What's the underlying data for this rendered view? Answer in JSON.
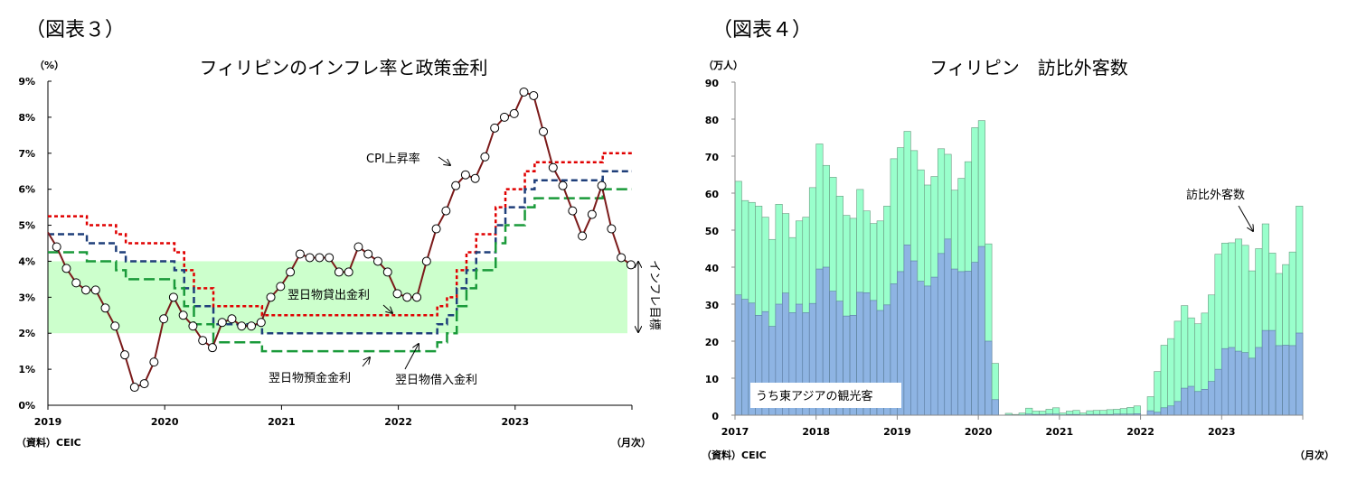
{
  "chart_data": [
    {
      "type": "line",
      "figure_label": "（図表３）",
      "title": "フィリピンのインフレ率と政策金利",
      "ylabel": "（%）",
      "xlabel": "（月次）",
      "source": "（資料）CEIC",
      "ylim": [
        0,
        9
      ],
      "yticks": [
        "0%",
        "1%",
        "2%",
        "3%",
        "4%",
        "5%",
        "6%",
        "7%",
        "8%",
        "9%"
      ],
      "xticks": [
        "2019",
        "2020",
        "2021",
        "2022",
        "2023"
      ],
      "x_start": "2019-01",
      "x_end": "2023-12",
      "target_band": {
        "label": "インフレ目標",
        "range": [
          2,
          4
        ],
        "color": "#ccffcc"
      },
      "series": [
        {
          "name": "CPI上昇率",
          "color": "#7b1a1a",
          "marker": "open-circle",
          "values": [
            4.4,
            3.8,
            3.4,
            3.2,
            3.2,
            2.7,
            2.2,
            1.4,
            0.5,
            0.6,
            1.2,
            2.4,
            3.0,
            2.5,
            2.2,
            1.8,
            1.6,
            2.3,
            2.4,
            2.2,
            2.2,
            2.3,
            3.0,
            3.3,
            3.7,
            4.2,
            4.1,
            4.1,
            4.1,
            3.7,
            3.7,
            4.4,
            4.2,
            4.0,
            3.7,
            3.1,
            3.0,
            3.0,
            4.0,
            4.9,
            5.4,
            6.1,
            6.4,
            6.3,
            6.9,
            7.7,
            8.0,
            8.1,
            8.7,
            8.6,
            7.6,
            6.6,
            6.1,
            5.4,
            4.7,
            5.3,
            6.1,
            4.9,
            4.1,
            3.9
          ]
        },
        {
          "name": "翌日物貸出金利",
          "color": "#e00000",
          "dash": "short",
          "values": [
            5.25,
            5.25,
            5.25,
            5.25,
            5.0,
            5.0,
            5.0,
            4.75,
            4.5,
            4.5,
            4.5,
            4.5,
            4.5,
            4.25,
            3.75,
            3.25,
            3.25,
            2.75,
            2.75,
            2.75,
            2.75,
            2.75,
            2.5,
            2.5,
            2.5,
            2.5,
            2.5,
            2.5,
            2.5,
            2.5,
            2.5,
            2.5,
            2.5,
            2.5,
            2.5,
            2.5,
            2.5,
            2.5,
            2.5,
            2.5,
            2.75,
            3.0,
            3.75,
            4.25,
            4.75,
            4.75,
            5.5,
            6.0,
            6.0,
            6.5,
            6.75,
            6.75,
            6.75,
            6.75,
            6.75,
            6.75,
            6.75,
            7.0,
            7.0,
            7.0
          ]
        },
        {
          "name": "翌日物借入金利",
          "color": "#1f3f7a",
          "dash": "medium",
          "values": [
            4.75,
            4.75,
            4.75,
            4.75,
            4.5,
            4.5,
            4.5,
            4.25,
            4.0,
            4.0,
            4.0,
            4.0,
            4.0,
            3.75,
            3.25,
            2.75,
            2.75,
            2.25,
            2.25,
            2.25,
            2.25,
            2.25,
            2.0,
            2.0,
            2.0,
            2.0,
            2.0,
            2.0,
            2.0,
            2.0,
            2.0,
            2.0,
            2.0,
            2.0,
            2.0,
            2.0,
            2.0,
            2.0,
            2.0,
            2.0,
            2.25,
            2.5,
            3.25,
            3.75,
            4.25,
            4.25,
            5.0,
            5.5,
            5.5,
            6.0,
            6.25,
            6.25,
            6.25,
            6.25,
            6.25,
            6.25,
            6.25,
            6.5,
            6.5,
            6.5
          ]
        },
        {
          "name": "翌日物預金金利",
          "color": "#1a9a3a",
          "dash": "long",
          "values": [
            4.25,
            4.25,
            4.25,
            4.25,
            4.0,
            4.0,
            4.0,
            3.75,
            3.5,
            3.5,
            3.5,
            3.5,
            3.5,
            3.25,
            2.75,
            2.25,
            2.25,
            1.75,
            1.75,
            1.75,
            1.75,
            1.75,
            1.5,
            1.5,
            1.5,
            1.5,
            1.5,
            1.5,
            1.5,
            1.5,
            1.5,
            1.5,
            1.5,
            1.5,
            1.5,
            1.5,
            1.5,
            1.5,
            1.5,
            1.5,
            1.75,
            2.0,
            2.75,
            3.25,
            3.75,
            3.75,
            4.5,
            5.0,
            5.0,
            5.5,
            5.75,
            5.75,
            5.75,
            5.75,
            5.75,
            5.75,
            5.75,
            6.0,
            6.0,
            6.0
          ]
        }
      ]
    },
    {
      "type": "bar",
      "stacked": true,
      "figure_label": "（図表４）",
      "title": "フィリピン　訪比外客数",
      "ylabel": "（万人）",
      "xlabel": "（月次）",
      "source": "（資料）CEIC",
      "ylim": [
        0,
        90
      ],
      "yticks": [
        "0",
        "10",
        "20",
        "30",
        "40",
        "50",
        "60",
        "70",
        "80",
        "90"
      ],
      "xticks": [
        "2017",
        "2018",
        "2019",
        "2020",
        "2021",
        "2022",
        "2023"
      ],
      "x_start": "2017-01",
      "x_end": "2023-12",
      "total": {
        "name": "訪比外客数",
        "color": "#99ffcc",
        "values": [
          63.2,
          58,
          57.5,
          56.5,
          53.5,
          47.5,
          57,
          54.5,
          48,
          52.5,
          53.5,
          61.5,
          73.3,
          67.5,
          64.3,
          59.2,
          54,
          53.2,
          61,
          55.2,
          51.8,
          52.5,
          56.5,
          69.3,
          72.3,
          76.7,
          71.5,
          66.3,
          62.2,
          64.5,
          72,
          70.5,
          60.8,
          64,
          68.5,
          77.7,
          79.6,
          46.3,
          14,
          0,
          0.5,
          0.2,
          0.6,
          1.9,
          1.1,
          1.1,
          1.6,
          2.0,
          0.6,
          1.1,
          1.3,
          0.6,
          1.2,
          1.3,
          1.3,
          1.5,
          1.6,
          1.8,
          2.1,
          2.5,
          null,
          5.0,
          11.8,
          18.9,
          20.7,
          25.4,
          29.6,
          26.3,
          24.7,
          27.6,
          32.5,
          43.5,
          46.5,
          46.6,
          47.6,
          45.9,
          39.0,
          45.0,
          51.7,
          43.8,
          38.3,
          40.7,
          44.1,
          56.5
        ]
      },
      "east_asia": {
        "name": "うち東アジアの観光客",
        "color": "#8eb4e3",
        "values": [
          32.5,
          31.3,
          30.3,
          27,
          28,
          24,
          30,
          33,
          27.7,
          30,
          27.7,
          30.2,
          39.5,
          40,
          33.5,
          30.8,
          26.8,
          27,
          33.2,
          33.1,
          31,
          28.3,
          29.8,
          35.5,
          38.8,
          46,
          41.7,
          36.2,
          34.9,
          37.3,
          43.7,
          47.6,
          39.5,
          38.8,
          38.9,
          41.3,
          45.6,
          20,
          4.2,
          0,
          0.1,
          0.05,
          0.1,
          0.3,
          0.2,
          0.2,
          0.3,
          0.3,
          0.1,
          0.2,
          0.2,
          0.1,
          0.2,
          0.2,
          0.2,
          0.2,
          0.3,
          0.3,
          0.3,
          0.4,
          null,
          1.2,
          0.8,
          2.0,
          2.5,
          3.7,
          7.3,
          7.8,
          6.4,
          7.0,
          9.1,
          12.4,
          18,
          18.3,
          17.3,
          16.9,
          15.4,
          18.3,
          22.9,
          22.9,
          18.8,
          18.9,
          18.8,
          22.2
        ]
      }
    }
  ]
}
